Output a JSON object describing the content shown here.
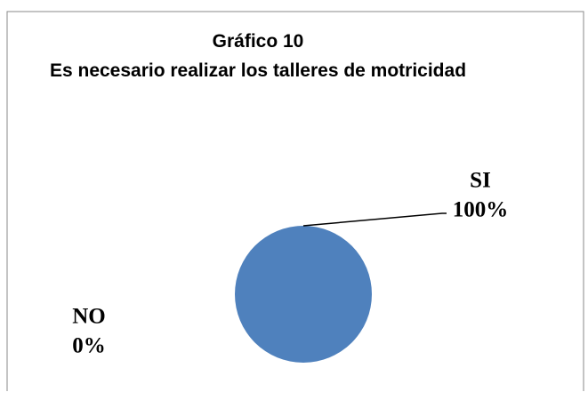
{
  "chart_data": {
    "type": "pie",
    "title": "Gráfico 10",
    "subtitle": "Es necesario realizar los talleres de motricidad",
    "categories": [
      "SI",
      "NO"
    ],
    "values": [
      100,
      0
    ],
    "value_labels": [
      "100%",
      "0%"
    ],
    "colors": [
      "#4f81bd",
      "#c0504d"
    ]
  }
}
